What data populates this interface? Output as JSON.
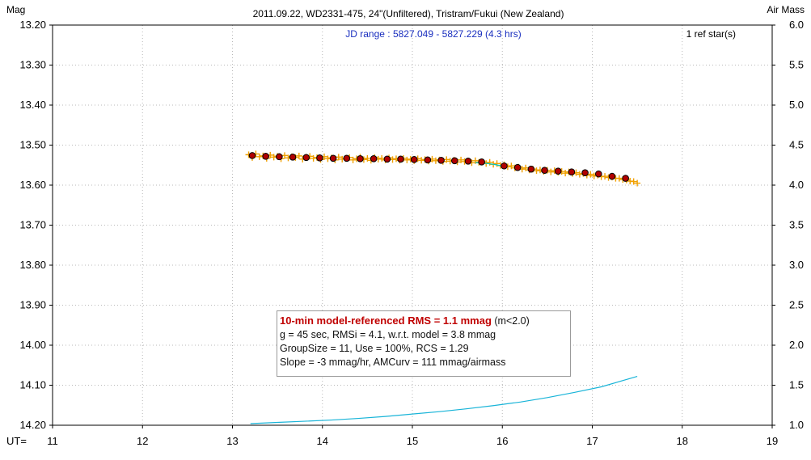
{
  "window": {
    "title": "2011.09.22, WD2331-475, 24\"(Unfiltered), Tristram/Fukui (New Zealand)"
  },
  "chart_data": {
    "type": "scatter",
    "title": "2011.09.22, WD2331-475, 24\"(Unfiltered), Tristram/Fukui (New Zealand)",
    "subtitle": "JD range : 5827.049 - 5827.229 (4.3 hrs)",
    "ref_stars": "1 ref star(s)",
    "ylabel": "Mag",
    "y2label": "Air Mass",
    "xlabel": "UT=",
    "xlim": [
      11,
      19
    ],
    "ylim": [
      13.2,
      14.2
    ],
    "y_inverted": true,
    "y2lim": [
      1.0,
      6.0
    ],
    "x_ticks": [
      "11",
      "12",
      "13",
      "14",
      "15",
      "16",
      "17",
      "18",
      "19"
    ],
    "y_ticks": [
      "13.20",
      "13.30",
      "13.40",
      "13.50",
      "13.60",
      "13.70",
      "13.80",
      "13.90",
      "14.00",
      "14.10",
      "14.20"
    ],
    "y2_ticks": [
      "6.0",
      "5.5",
      "5.0",
      "4.5",
      "4.0",
      "3.5",
      "3.0",
      "2.5",
      "2.0",
      "1.5",
      "1.0"
    ],
    "grid": "dotted",
    "colors": {
      "raw": "#f0a000",
      "binned_fill": "#b00000",
      "binned_edge": "#000000",
      "model": "#00c8c8",
      "airmass": "#18b4d8",
      "highlight": "#c00000",
      "jd": "#1a2fbf"
    },
    "series": [
      {
        "style": "raw",
        "x": [
          13.18,
          13.22,
          13.26,
          13.3,
          13.34,
          13.38,
          13.42,
          13.46,
          13.5,
          13.54,
          13.58,
          13.62,
          13.66,
          13.7,
          13.74,
          13.78,
          13.82,
          13.86,
          13.9,
          13.94,
          13.98,
          14.02,
          14.06,
          14.1,
          14.14,
          14.18,
          14.22,
          14.26,
          14.3,
          14.34,
          14.38,
          14.42,
          14.46,
          14.5,
          14.54,
          14.58,
          14.62,
          14.66,
          14.7,
          14.74,
          14.78,
          14.82,
          14.86,
          14.9,
          14.94,
          14.98,
          15.02,
          15.06,
          15.1,
          15.14,
          15.18,
          15.22,
          15.26,
          15.3,
          15.34,
          15.38,
          15.42,
          15.46,
          15.5,
          15.54,
          15.58,
          15.62,
          15.66,
          15.7,
          15.74,
          15.78,
          15.82,
          15.86,
          15.9,
          15.94,
          15.98,
          16.02,
          16.06,
          16.1,
          16.14,
          16.18,
          16.22,
          16.26,
          16.3,
          16.34,
          16.38,
          16.42,
          16.46,
          16.5,
          16.54,
          16.58,
          16.62,
          16.66,
          16.7,
          16.74,
          16.78,
          16.82,
          16.86,
          16.9,
          16.94,
          16.98,
          17.02,
          17.06,
          17.1,
          17.14,
          17.18,
          17.22,
          17.26,
          17.3,
          17.34,
          17.38,
          17.42,
          17.46,
          17.5
        ],
        "y": [
          13.524,
          13.531,
          13.522,
          13.529,
          13.527,
          13.533,
          13.525,
          13.53,
          13.528,
          13.534,
          13.526,
          13.532,
          13.529,
          13.531,
          13.527,
          13.535,
          13.53,
          13.528,
          13.533,
          13.531,
          13.536,
          13.529,
          13.534,
          13.532,
          13.537,
          13.53,
          13.535,
          13.533,
          13.531,
          13.537,
          13.534,
          13.53,
          13.536,
          13.533,
          13.538,
          13.531,
          13.535,
          13.533,
          13.537,
          13.532,
          13.536,
          13.534,
          13.538,
          13.533,
          13.537,
          13.535,
          13.539,
          13.534,
          13.538,
          13.536,
          13.54,
          13.535,
          13.539,
          13.537,
          13.541,
          13.536,
          13.54,
          13.538,
          13.542,
          13.537,
          13.541,
          13.54,
          13.544,
          13.539,
          13.543,
          13.542,
          13.546,
          13.543,
          13.548,
          13.546,
          13.551,
          13.549,
          13.554,
          13.552,
          13.557,
          13.555,
          13.56,
          13.557,
          13.562,
          13.56,
          13.564,
          13.562,
          13.566,
          13.563,
          13.567,
          13.564,
          13.568,
          13.566,
          13.57,
          13.567,
          13.571,
          13.569,
          13.573,
          13.571,
          13.575,
          13.573,
          13.577,
          13.575,
          13.579,
          13.578,
          13.581,
          13.58,
          13.583,
          13.583,
          13.586,
          13.587,
          13.59,
          13.591,
          13.595
        ]
      },
      {
        "style": "binned",
        "x": [
          13.22,
          13.37,
          13.52,
          13.67,
          13.82,
          13.97,
          14.12,
          14.27,
          14.42,
          14.57,
          14.72,
          14.87,
          15.02,
          15.17,
          15.32,
          15.47,
          15.62,
          15.77,
          16.02,
          16.17,
          16.32,
          16.47,
          16.62,
          16.77,
          16.92,
          17.07,
          17.22,
          17.37
        ],
        "y": [
          13.526,
          13.528,
          13.529,
          13.53,
          13.531,
          13.532,
          13.533,
          13.533,
          13.534,
          13.534,
          13.535,
          13.535,
          13.536,
          13.537,
          13.538,
          13.539,
          13.54,
          13.542,
          13.552,
          13.556,
          13.56,
          13.563,
          13.565,
          13.567,
          13.569,
          13.572,
          13.578,
          13.583
        ]
      },
      {
        "style": "model",
        "x": [
          15.7,
          15.8,
          15.9,
          16.0
        ],
        "y": [
          13.544,
          13.545,
          13.548,
          13.552
        ]
      },
      {
        "style": "airmass",
        "axis": "y2",
        "x": [
          13.2,
          13.5,
          13.8,
          14.1,
          14.4,
          14.7,
          15.0,
          15.3,
          15.6,
          15.9,
          16.2,
          16.5,
          16.8,
          17.1,
          17.5
        ],
        "y": [
          1.02,
          1.035,
          1.05,
          1.065,
          1.085,
          1.11,
          1.14,
          1.17,
          1.205,
          1.245,
          1.29,
          1.345,
          1.41,
          1.48,
          1.61
        ]
      }
    ],
    "stats_box": {
      "highlight": "10-min model-referenced RMS = 1.1 mmag",
      "highlight_suffix": " (m<2.0)",
      "line2": "g = 45 sec, RMSi = 4.1, w.r.t. model = 3.8 mmag",
      "line3": "GroupSize = 11, Use = 100%, RCS = 1.29",
      "line4": "Slope = -3 mmag/hr, AMCurv = 111 mmag/airmass"
    }
  }
}
